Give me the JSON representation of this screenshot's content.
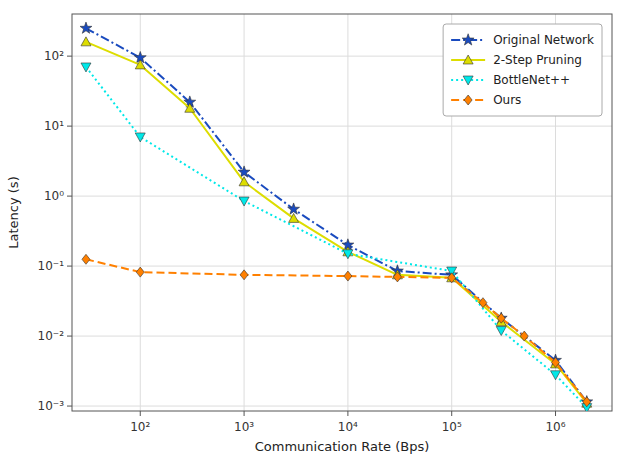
{
  "chart_data": {
    "type": "line",
    "xlabel": "Communication Rate (Bps)",
    "ylabel": "Latency (s)",
    "log": true,
    "grid": true,
    "legend": "upper right",
    "xlim": [
      22,
      3500000
    ],
    "ylim": [
      0.00085,
      400
    ],
    "xticks": [
      {
        "value": 100,
        "label": "10²"
      },
      {
        "value": 1000,
        "label": "10³"
      },
      {
        "value": 10000,
        "label": "10⁴"
      },
      {
        "value": 100000,
        "label": "10⁵"
      },
      {
        "value": 1000000,
        "label": "10⁶"
      }
    ],
    "yticks": [
      {
        "value": 0.001,
        "label": "10⁻³"
      },
      {
        "value": 0.01,
        "label": "10⁻²"
      },
      {
        "value": 0.1,
        "label": "10⁻¹"
      },
      {
        "value": 1,
        "label": "10⁰"
      },
      {
        "value": 10,
        "label": "10¹"
      },
      {
        "value": 100,
        "label": "10²"
      }
    ],
    "series": [
      {
        "name": "Original Network",
        "color": "#1a4bbf",
        "line_style": "dashdot",
        "marker": "star",
        "x": [
          30,
          100,
          300,
          1000,
          3000,
          10000,
          30000,
          100000,
          300000,
          1000000,
          2000000
        ],
        "values": [
          250,
          95,
          22,
          2.2,
          0.65,
          0.2,
          0.085,
          0.075,
          0.018,
          0.0045,
          0.00115
        ]
      },
      {
        "name": "2-Step Pruning",
        "color": "#dddd00",
        "line_style": "solid",
        "marker": "triangle-up",
        "x": [
          30,
          100,
          300,
          1000,
          3000,
          10000,
          30000,
          100000,
          300000,
          1000000,
          2000000
        ],
        "values": [
          160,
          75,
          18,
          1.6,
          0.48,
          0.16,
          0.075,
          0.068,
          0.016,
          0.004,
          0.0011
        ]
      },
      {
        "name": "BottleNet++",
        "color": "#00e8e8",
        "line_style": "dotted",
        "marker": "triangle-down",
        "x": [
          30,
          100,
          1000,
          10000,
          100000,
          300000,
          1000000,
          2000000
        ],
        "values": [
          70,
          7.0,
          0.85,
          0.15,
          0.085,
          0.012,
          0.0028,
          0.00095
        ]
      },
      {
        "name": "Ours",
        "color": "#ff8000",
        "line_style": "dashed",
        "marker": "diamond",
        "x": [
          30,
          100,
          1000,
          10000,
          30000,
          100000,
          200000,
          300000,
          500000,
          1000000,
          2000000
        ],
        "values": [
          0.125,
          0.082,
          0.075,
          0.072,
          0.07,
          0.068,
          0.03,
          0.018,
          0.01,
          0.0042,
          0.00115
        ]
      }
    ]
  }
}
